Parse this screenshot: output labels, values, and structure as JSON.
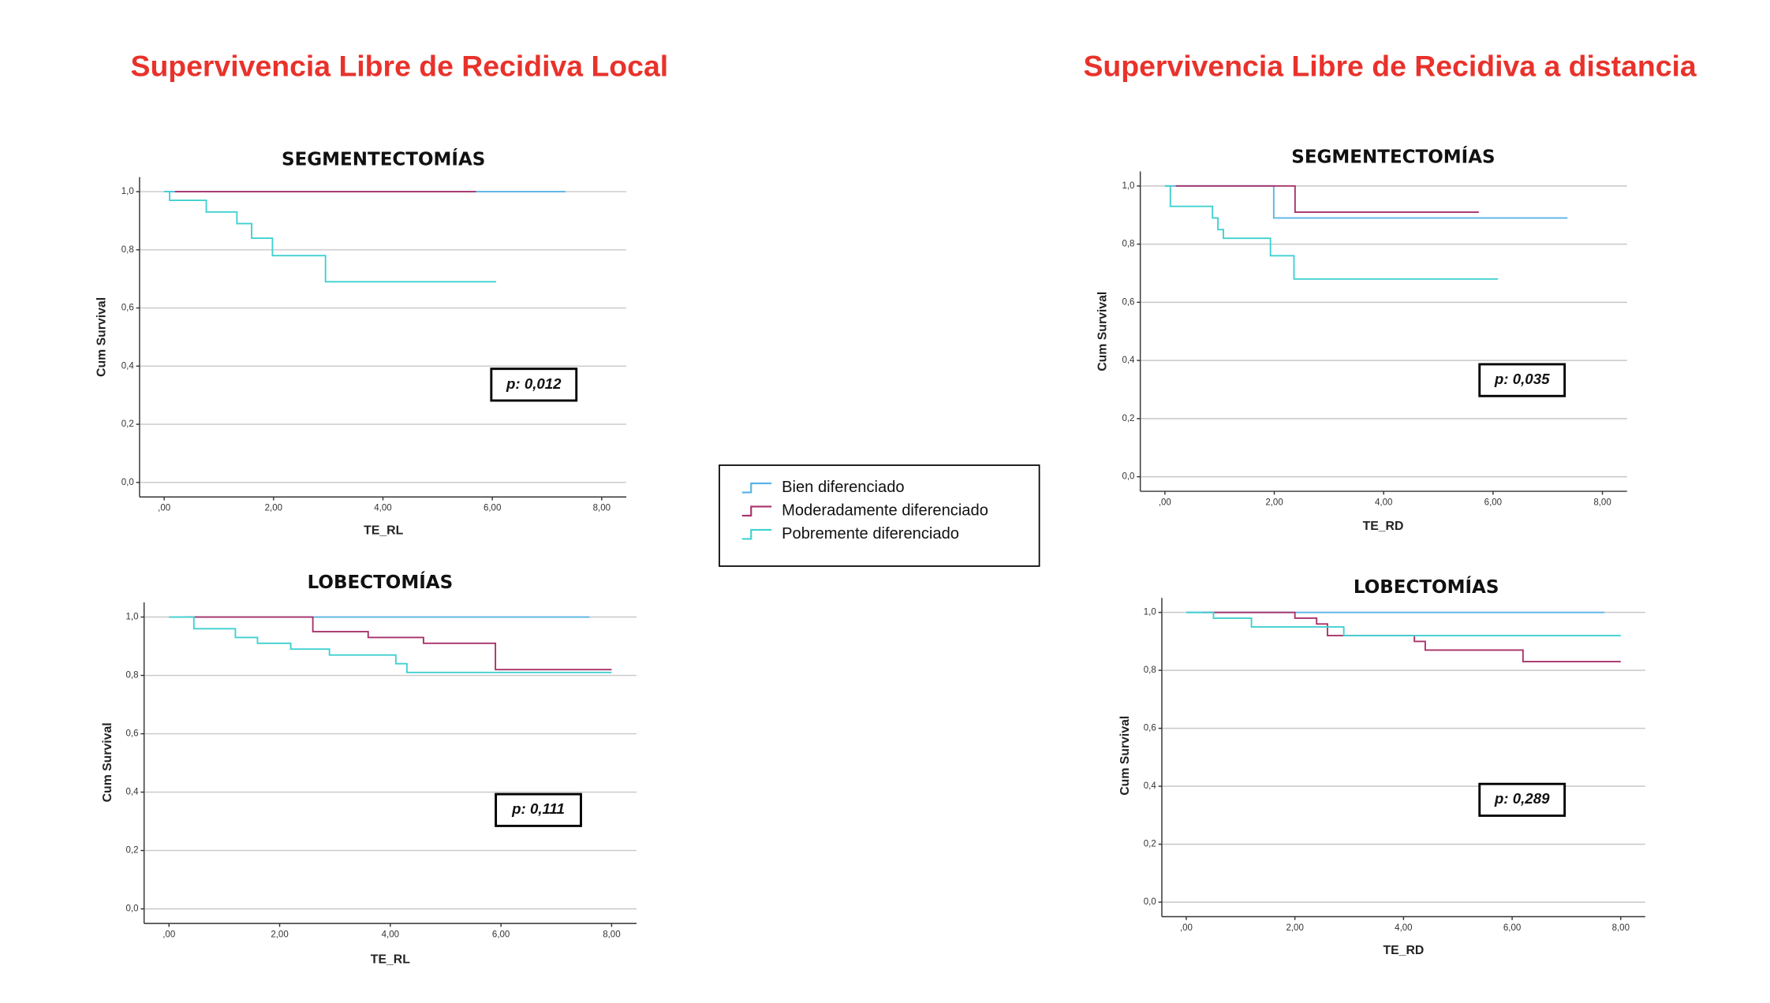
{
  "headers": [
    "Supervivencia Libre de Recidiva Local",
    "Supervivencia Libre de Recidiva a distancia"
  ],
  "legend": [
    {
      "name": "Bien diferenciado",
      "color": "#5ab4e6"
    },
    {
      "name": "Moderadamente diferenciado",
      "color": "#a8326a"
    },
    {
      "name": "Pobremente diferenciado",
      "color": "#40d0d0"
    }
  ],
  "chart_data": [
    {
      "type": "line",
      "step": true,
      "title": "SEGMENTECTOMÍAS",
      "x_label": "TE_RL",
      "y_label": "Cum Survival",
      "annotation": "p: 0,012",
      "grid": true,
      "xlim": [
        -0.45,
        8.45
      ],
      "ylim": [
        -0.05,
        1.05
      ],
      "xticks": [
        {
          "value": 0,
          "label": ",00"
        },
        {
          "value": 2,
          "label": "2,00"
        },
        {
          "value": 4,
          "label": "4,00"
        },
        {
          "value": 6,
          "label": "6,00"
        },
        {
          "value": 8,
          "label": "8,00"
        }
      ],
      "yticks": [
        {
          "value": 0,
          "label": "0,0"
        },
        {
          "value": 0.2,
          "label": "0,2"
        },
        {
          "value": 0.4,
          "label": "0,4"
        },
        {
          "value": 0.6,
          "label": "0,6"
        },
        {
          "value": 0.8,
          "label": "0,8"
        },
        {
          "value": 1,
          "label": "1,0"
        }
      ],
      "series": [
        {
          "color": "#5ab4e6",
          "x": [
            0,
            7.34
          ],
          "values": [
            1,
            1
          ]
        },
        {
          "color": "#a8326a",
          "x": [
            0.2,
            5.7
          ],
          "values": [
            1,
            1
          ]
        },
        {
          "color": "#40d0d0",
          "x": [
            0,
            0.1,
            0.77,
            1.33,
            1.6,
            1.98,
            2.95,
            6.07
          ],
          "values": [
            1,
            0.97,
            0.93,
            0.89,
            0.84,
            0.78,
            0.69,
            0.69
          ]
        }
      ]
    },
    {
      "type": "line",
      "step": true,
      "title": "SEGMENTECTOMÍAS",
      "x_label": "TE_RD",
      "y_label": "Cum Survival",
      "annotation": "p: 0,035",
      "grid": true,
      "xlim": [
        -0.45,
        8.45
      ],
      "ylim": [
        -0.05,
        1.05
      ],
      "xticks": [
        {
          "value": 0,
          "label": ",00"
        },
        {
          "value": 2,
          "label": "2,00"
        },
        {
          "value": 4,
          "label": "4,00"
        },
        {
          "value": 6,
          "label": "6,00"
        },
        {
          "value": 8,
          "label": "8,00"
        }
      ],
      "yticks": [
        {
          "value": 0,
          "label": "0,0"
        },
        {
          "value": 0.2,
          "label": "0,2"
        },
        {
          "value": 0.4,
          "label": "0,4"
        },
        {
          "value": 0.6,
          "label": "0,6"
        },
        {
          "value": 0.8,
          "label": "0,8"
        },
        {
          "value": 1,
          "label": "1,0"
        }
      ],
      "series": [
        {
          "color": "#5ab4e6",
          "x": [
            0,
            1.99,
            7.36
          ],
          "values": [
            1,
            0.89,
            0.89
          ]
        },
        {
          "color": "#a8326a",
          "x": [
            0.2,
            2.38,
            5.74
          ],
          "values": [
            1,
            0.91,
            0.91
          ]
        },
        {
          "color": "#40d0d0",
          "x": [
            0,
            0.1,
            0.87,
            0.97,
            1.07,
            1.93,
            2.36,
            6.09
          ],
          "values": [
            1,
            0.93,
            0.89,
            0.85,
            0.82,
            0.76,
            0.68,
            0.68
          ]
        }
      ]
    },
    {
      "type": "line",
      "step": true,
      "title": "LOBECTOMÍAS",
      "x_label": "TE_RL",
      "y_label": "Cum Survival",
      "annotation": "p: 0,111",
      "grid": true,
      "xlim": [
        -0.45,
        8.45
      ],
      "ylim": [
        -0.05,
        1.05
      ],
      "xticks": [
        {
          "value": 0,
          "label": ",00"
        },
        {
          "value": 2,
          "label": "2,00"
        },
        {
          "value": 4,
          "label": "4,00"
        },
        {
          "value": 6,
          "label": "6,00"
        },
        {
          "value": 8,
          "label": "8,00"
        }
      ],
      "yticks": [
        {
          "value": 0,
          "label": "0,0"
        },
        {
          "value": 0.2,
          "label": "0,2"
        },
        {
          "value": 0.4,
          "label": "0,4"
        },
        {
          "value": 0.6,
          "label": "0,6"
        },
        {
          "value": 0.8,
          "label": "0,8"
        },
        {
          "value": 1,
          "label": "1,0"
        }
      ],
      "series": [
        {
          "color": "#5ab4e6",
          "x": [
            0.3,
            7.6
          ],
          "values": [
            1,
            1
          ]
        },
        {
          "color": "#a8326a",
          "x": [
            0.3,
            2.6,
            3.6,
            4.6,
            5.9,
            8.0
          ],
          "values": [
            1,
            0.95,
            0.93,
            0.91,
            0.82,
            0.82
          ]
        },
        {
          "color": "#40d0d0",
          "x": [
            0,
            0.45,
            1.2,
            1.6,
            2.2,
            2.9,
            4.1,
            4.3,
            8.0
          ],
          "values": [
            1,
            0.96,
            0.93,
            0.91,
            0.89,
            0.87,
            0.84,
            0.81,
            0.81
          ]
        }
      ]
    },
    {
      "type": "line",
      "step": true,
      "title": "LOBECTOMÍAS",
      "x_label": "TE_RD",
      "y_label": "Cum Survival",
      "annotation": "p: 0,289",
      "grid": true,
      "xlim": [
        -0.45,
        8.45
      ],
      "ylim": [
        -0.05,
        1.05
      ],
      "xticks": [
        {
          "value": 0,
          "label": ",00"
        },
        {
          "value": 2,
          "label": "2,00"
        },
        {
          "value": 4,
          "label": "4,00"
        },
        {
          "value": 6,
          "label": "6,00"
        },
        {
          "value": 8,
          "label": "8,00"
        }
      ],
      "yticks": [
        {
          "value": 0,
          "label": "0,0"
        },
        {
          "value": 0.2,
          "label": "0,2"
        },
        {
          "value": 0.4,
          "label": "0,4"
        },
        {
          "value": 0.6,
          "label": "0,6"
        },
        {
          "value": 0.8,
          "label": "0,8"
        },
        {
          "value": 1,
          "label": "1,0"
        }
      ],
      "series": [
        {
          "color": "#5ab4e6",
          "x": [
            0,
            7.7
          ],
          "values": [
            1,
            1
          ]
        },
        {
          "color": "#a8326a",
          "x": [
            0.3,
            2.0,
            2.4,
            2.6,
            4.2,
            4.4,
            6.2,
            8.0
          ],
          "values": [
            1,
            0.98,
            0.96,
            0.92,
            0.9,
            0.87,
            0.83,
            0.83
          ]
        },
        {
          "color": "#40d0d0",
          "x": [
            0,
            0.5,
            1.2,
            2.9,
            8.0
          ],
          "values": [
            1,
            0.98,
            0.95,
            0.92,
            0.92
          ]
        }
      ]
    }
  ]
}
